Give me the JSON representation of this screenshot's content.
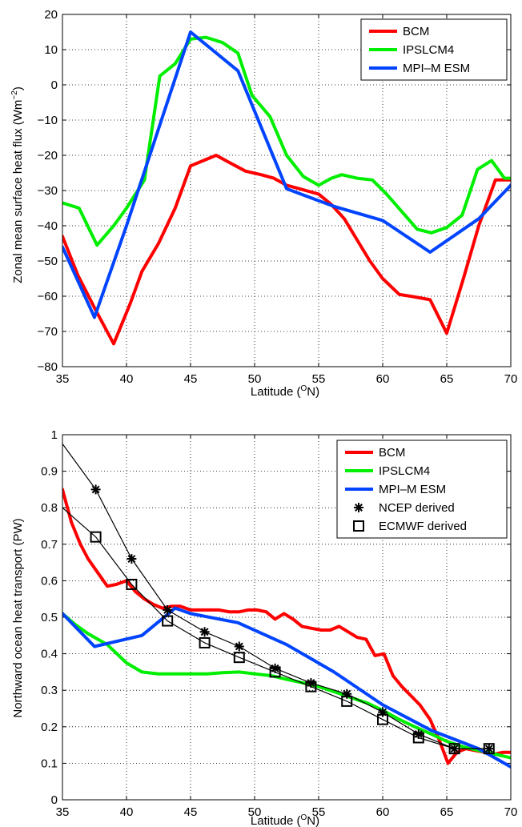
{
  "chart_data": [
    {
      "type": "line",
      "xlabel": "Latitude (",
      "xlabel_sup": "O",
      "xlabel_end": "N)",
      "ylabel": "Zonal mean surface heat flux (Wm",
      "ylabel_sup": "−2",
      "ylabel_end": ")",
      "xlim": [
        35,
        70
      ],
      "ylim": [
        -80,
        20
      ],
      "xticks": [
        35,
        40,
        45,
        50,
        55,
        60,
        65,
        70
      ],
      "yticks": [
        -80,
        -70,
        -60,
        -50,
        -40,
        -30,
        -20,
        -10,
        0,
        10,
        20
      ],
      "grid": true,
      "legend": "top-right",
      "series": [
        {
          "name": "BCM",
          "color": "#ff0000",
          "x": [
            35,
            36.2,
            37.6,
            39,
            40.3,
            41.2,
            42.5,
            43.8,
            45,
            46,
            47,
            48,
            49.3,
            50.5,
            51.5,
            52.5,
            54,
            55,
            56,
            57,
            58,
            59,
            60,
            61.3,
            62.5,
            63.7,
            65,
            66.3,
            67.5,
            68.8,
            70
          ],
          "y": [
            -43,
            -54,
            -64,
            -73.5,
            -62,
            -53,
            -45,
            -35,
            -23,
            -21.5,
            -20,
            -22,
            -24.5,
            -25.5,
            -26.5,
            -28.5,
            -30,
            -31,
            -34,
            -38,
            -44,
            -50,
            -55,
            -59.5,
            -60.2,
            -61,
            -70.5,
            -55,
            -40,
            -27,
            -27
          ]
        },
        {
          "name": "IPSLCM4",
          "color": "#00ee00",
          "x": [
            35,
            36.3,
            37.7,
            39,
            40,
            41.4,
            42.6,
            43.8,
            45,
            46.2,
            47.5,
            48.7,
            49.8,
            51.2,
            52.5,
            53.8,
            55,
            56,
            56.8,
            58,
            59.2,
            60.3,
            61.5,
            62.7,
            63.8,
            65,
            66.2,
            67.4,
            68.5,
            69.5,
            70
          ],
          "y": [
            -33.5,
            -35,
            -45.5,
            -40,
            -35,
            -27,
            2.5,
            6,
            13,
            13.5,
            12,
            9,
            -3,
            -9,
            -20,
            -26,
            -28.5,
            -26.5,
            -25.5,
            -26.5,
            -27,
            -31,
            -36,
            -41,
            -42,
            -40.5,
            -37,
            -24,
            -21.5,
            -26.5,
            -26.5
          ]
        },
        {
          "name": "MPI–M ESM",
          "color": "#0044ff",
          "x": [
            35,
            37.5,
            40,
            45,
            48.7,
            52.5,
            56.2,
            60,
            63.7,
            67.5,
            70
          ],
          "y": [
            -46,
            -66,
            -40,
            15,
            4,
            -29.5,
            -34.5,
            -38.5,
            -47.5,
            -38,
            -28.5
          ]
        }
      ]
    },
    {
      "type": "line",
      "xlabel": "Latitude (",
      "xlabel_sup": "O",
      "xlabel_end": "N)",
      "ylabel": "Northward ocean heat transport (PW)",
      "xlim": [
        35,
        70
      ],
      "ylim": [
        0,
        1
      ],
      "xticks": [
        35,
        40,
        45,
        50,
        55,
        60,
        65,
        70
      ],
      "yticks": [
        0,
        0.1,
        0.2,
        0.3,
        0.4,
        0.5,
        0.6,
        0.7,
        0.8,
        0.9,
        1
      ],
      "grid": true,
      "legend": "top-right",
      "series": [
        {
          "name": "BCM",
          "color": "#ff0000",
          "x": [
            35,
            35.7,
            36.4,
            37,
            37.8,
            38.5,
            39.2,
            40,
            40.7,
            41.4,
            42.1,
            42.8,
            43.5,
            44.2,
            45,
            45.8,
            46.5,
            47.2,
            48,
            48.8,
            49.5,
            50.2,
            50.9,
            51.6,
            52.3,
            53,
            53.7,
            54.4,
            55.2,
            55.9,
            56.6,
            57.3,
            58,
            58.7,
            59.4,
            60.1,
            60.8,
            61.5,
            62.2,
            62.9,
            63.7,
            64.4,
            65.1,
            65.8,
            66.5,
            67.2,
            68,
            68.7,
            69.4,
            70
          ],
          "y": [
            0.85,
            0.76,
            0.7,
            0.66,
            0.62,
            0.585,
            0.59,
            0.6,
            0.57,
            0.55,
            0.535,
            0.525,
            0.53,
            0.53,
            0.52,
            0.52,
            0.52,
            0.52,
            0.515,
            0.515,
            0.52,
            0.52,
            0.515,
            0.495,
            0.51,
            0.495,
            0.475,
            0.47,
            0.465,
            0.465,
            0.475,
            0.46,
            0.445,
            0.44,
            0.395,
            0.4,
            0.34,
            0.31,
            0.285,
            0.26,
            0.22,
            0.165,
            0.1,
            0.13,
            0.14,
            0.135,
            0.13,
            0.125,
            0.13,
            0.13
          ]
        },
        {
          "name": "IPSLCM4",
          "color": "#00ee00",
          "x": [
            35,
            36,
            37,
            38.5,
            40,
            41.2,
            42.5,
            43.8,
            45,
            46.3,
            47.5,
            48.8,
            50,
            51.3,
            52.5,
            53.8,
            55,
            56.3,
            57.5,
            58.8,
            60,
            61.3,
            62.5,
            63.8,
            65,
            66.3,
            67.5,
            68.8,
            70
          ],
          "y": [
            0.51,
            0.48,
            0.455,
            0.425,
            0.375,
            0.35,
            0.345,
            0.345,
            0.345,
            0.345,
            0.348,
            0.35,
            0.345,
            0.34,
            0.33,
            0.32,
            0.31,
            0.295,
            0.28,
            0.265,
            0.245,
            0.22,
            0.2,
            0.18,
            0.16,
            0.145,
            0.135,
            0.125,
            0.115
          ]
        },
        {
          "name": "MPI–M ESM",
          "color": "#0044ff",
          "x": [
            35,
            37.5,
            41.2,
            43.8,
            45,
            48.7,
            52.5,
            56.2,
            60,
            63.8,
            67.5,
            70
          ],
          "y": [
            0.51,
            0.42,
            0.45,
            0.525,
            0.51,
            0.485,
            0.425,
            0.35,
            0.26,
            0.19,
            0.14,
            0.09
          ]
        },
        {
          "name": "NCEP derived",
          "color": "#000000",
          "marker": "asterisk",
          "x": [
            35,
            37.6,
            40.4,
            43.2,
            46.1,
            48.8,
            51.6,
            54.4,
            57.2,
            60,
            62.8,
            65.6,
            68.3
          ],
          "y": [
            0.975,
            0.85,
            0.66,
            0.52,
            0.46,
            0.42,
            0.36,
            0.32,
            0.29,
            0.24,
            0.18,
            0.14,
            0.14
          ]
        },
        {
          "name": "ECMWF derived",
          "color": "#000000",
          "marker": "square",
          "x": [
            35,
            37.6,
            40.4,
            43.2,
            46.1,
            48.8,
            51.6,
            54.4,
            57.2,
            60,
            62.8,
            65.6,
            68.3
          ],
          "y": [
            0.8,
            0.72,
            0.59,
            0.49,
            0.43,
            0.39,
            0.35,
            0.31,
            0.27,
            0.22,
            0.17,
            0.14,
            0.14
          ]
        }
      ]
    }
  ]
}
